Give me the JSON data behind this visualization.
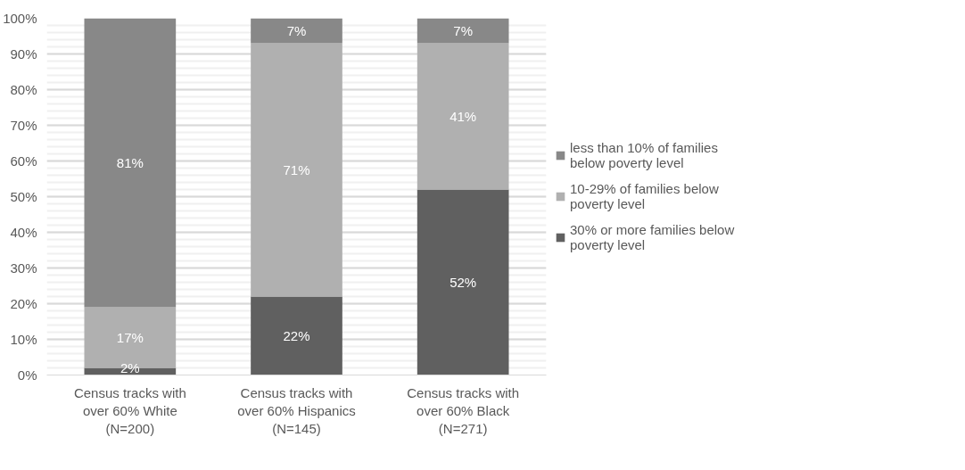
{
  "chart_data": {
    "type": "bar",
    "stacked": true,
    "categories": [
      "Census tracks with over 60% White (N=200)",
      "Census tracks with over 60% Hispanics (N=145)",
      "Census tracks with over 60% Black (N=271)"
    ],
    "series": [
      {
        "name": "30% or more families below poverty level",
        "color": "#606060",
        "values": [
          2,
          22,
          52
        ],
        "value_labels": [
          "2%",
          "22%",
          "52%"
        ]
      },
      {
        "name": "10-29% of families below poverty level",
        "color": "#b0b0b0",
        "values": [
          17,
          71,
          41
        ],
        "value_labels": [
          "17%",
          "71%",
          "41%"
        ]
      },
      {
        "name": "less than 10% of families below poverty level",
        "color": "#888888",
        "values": [
          81,
          7,
          7
        ],
        "value_labels": [
          "81%",
          "7%",
          "7%"
        ]
      }
    ],
    "ylim": [
      0,
      100
    ],
    "yticks": [
      {
        "value": 0,
        "label": "0%"
      },
      {
        "value": 10,
        "label": "10%"
      },
      {
        "value": 20,
        "label": "20%"
      },
      {
        "value": 30,
        "label": "30%"
      },
      {
        "value": 40,
        "label": "40%"
      },
      {
        "value": 50,
        "label": "50%"
      },
      {
        "value": 60,
        "label": "60%"
      },
      {
        "value": 70,
        "label": "70%"
      },
      {
        "value": 80,
        "label": "80%"
      },
      {
        "value": 90,
        "label": "90%"
      },
      {
        "value": 100,
        "label": "100%"
      }
    ],
    "grid": "y",
    "legend": "right"
  }
}
